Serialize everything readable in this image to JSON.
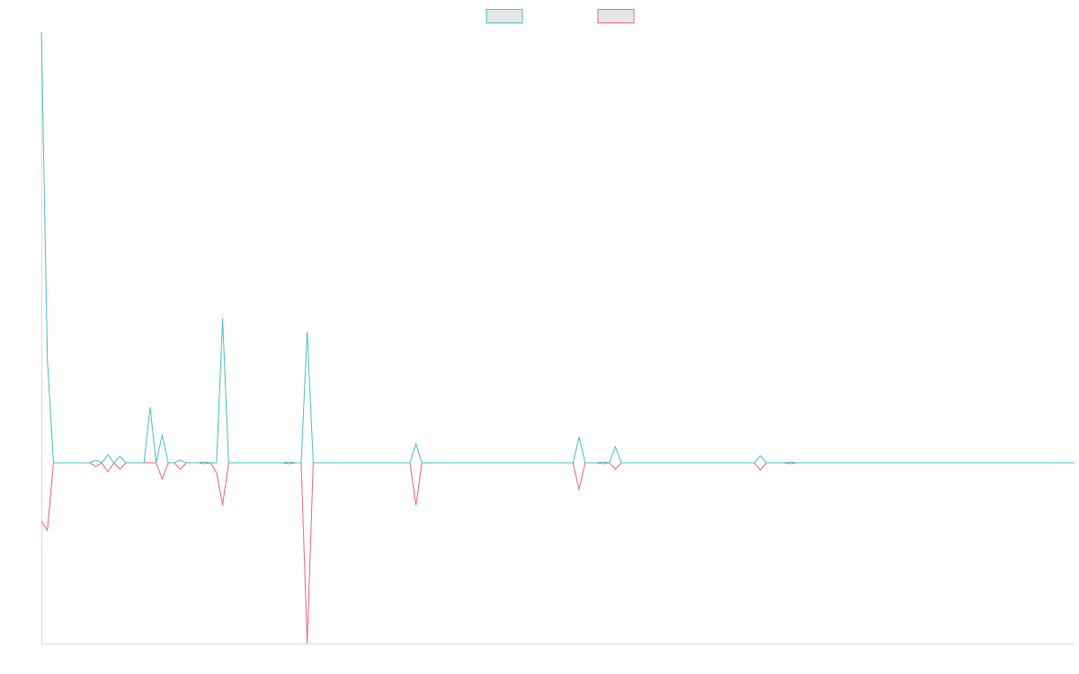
{
  "chart_data": {
    "type": "line",
    "legend": "top",
    "ylim": [
      -201,
      479
    ],
    "categories": [
      null,
      null,
      null,
      null,
      null,
      null,
      null,
      null,
      null,
      null,
      null,
      null,
      null,
      null,
      null,
      null,
      null,
      null,
      null,
      null,
      null,
      null,
      null,
      null,
      null,
      null,
      null,
      null,
      null,
      null,
      null,
      null,
      null,
      null,
      null,
      null,
      null,
      null,
      null,
      null,
      null,
      null,
      null,
      null,
      null,
      null,
      null,
      null,
      null,
      null,
      null,
      null,
      null,
      null,
      null,
      null,
      null,
      null,
      null,
      null,
      null,
      null,
      null,
      null,
      null,
      null,
      null,
      null,
      null,
      null,
      null,
      null,
      null,
      null,
      null,
      null,
      null,
      null,
      null,
      null,
      null,
      null,
      null,
      null,
      null,
      null,
      null,
      null,
      null,
      null,
      null,
      null,
      null,
      null,
      null,
      null,
      null,
      null,
      null,
      null,
      null,
      null,
      null,
      null,
      null,
      null,
      null,
      null,
      null,
      null,
      null,
      null,
      null,
      null,
      null,
      null,
      null,
      null,
      null,
      null,
      null,
      null,
      null,
      null,
      null,
      null,
      null,
      null,
      null,
      null,
      null,
      null,
      null,
      null,
      null,
      null,
      null,
      null,
      null,
      null,
      null,
      null,
      null,
      null,
      null,
      null,
      null,
      null,
      null,
      null,
      null,
      null,
      null,
      null,
      null,
      null,
      null,
      null,
      null,
      null,
      null,
      null,
      null,
      null,
      null,
      null,
      null,
      null,
      null,
      null,
      null,
      null
    ],
    "series": [
      {
        "color": "#4bc0c0",
        "values": [
          479,
          115,
          0,
          0,
          0,
          0,
          0,
          0,
          0,
          3,
          0,
          9,
          0,
          7,
          0,
          0,
          0,
          0,
          62,
          0,
          31,
          0,
          0,
          3,
          0,
          0,
          0,
          1,
          0,
          0,
          161,
          0,
          0,
          0,
          0,
          0,
          0,
          0,
          0,
          0,
          0,
          1,
          0,
          0,
          146,
          0,
          0,
          0,
          0,
          0,
          0,
          0,
          0,
          0,
          0,
          0,
          0,
          0,
          0,
          0,
          0,
          0,
          21,
          0,
          0,
          0,
          0,
          0,
          0,
          0,
          0,
          0,
          0,
          0,
          0,
          0,
          0,
          0,
          0,
          0,
          0,
          0,
          0,
          0,
          0,
          0,
          0,
          0,
          0,
          29,
          0,
          0,
          0,
          1,
          0,
          18,
          0,
          0,
          0,
          0,
          0,
          0,
          0,
          0,
          0,
          0,
          0,
          0,
          0,
          0,
          0,
          0,
          0,
          0,
          0,
          0,
          0,
          0,
          0,
          8,
          0,
          0,
          0,
          0,
          1,
          0,
          0,
          0,
          0,
          0,
          0,
          0,
          0,
          0,
          0,
          0,
          0,
          0,
          0,
          0,
          0,
          0,
          0,
          0,
          0,
          0,
          0,
          0,
          0,
          0,
          0,
          0,
          0,
          0,
          0,
          0,
          0,
          0,
          0,
          0,
          0,
          0,
          0,
          0,
          0,
          0,
          0,
          0,
          0,
          0,
          0,
          0
        ]
      },
      {
        "color": "#f0628a",
        "values": [
          -65,
          -75,
          0,
          0,
          0,
          0,
          0,
          0,
          0,
          -4,
          0,
          -10,
          0,
          -7,
          0,
          0,
          0,
          0,
          0,
          0,
          -18,
          0,
          0,
          -7,
          0,
          0,
          0,
          -1,
          0,
          -11,
          -47,
          0,
          0,
          0,
          0,
          0,
          0,
          0,
          0,
          0,
          0,
          -1,
          0,
          0,
          -201,
          0,
          0,
          0,
          0,
          0,
          0,
          0,
          0,
          0,
          0,
          0,
          0,
          0,
          0,
          0,
          0,
          0,
          -47,
          0,
          0,
          0,
          0,
          0,
          0,
          0,
          0,
          0,
          0,
          0,
          0,
          0,
          0,
          0,
          0,
          0,
          0,
          0,
          0,
          0,
          0,
          0,
          0,
          0,
          0,
          -30,
          0,
          0,
          0,
          -1,
          0,
          -7,
          0,
          0,
          0,
          0,
          0,
          0,
          0,
          0,
          0,
          0,
          0,
          0,
          0,
          0,
          0,
          0,
          0,
          0,
          0,
          0,
          0,
          0,
          0,
          -8,
          0,
          0,
          0,
          0,
          -1,
          0,
          0,
          0,
          0,
          0,
          0,
          0,
          0,
          0,
          0,
          0,
          0,
          0,
          0,
          0,
          0,
          0,
          0,
          0,
          0,
          0,
          0,
          0,
          0,
          0,
          0,
          0,
          0,
          0,
          0,
          0,
          0,
          0,
          0,
          0,
          0,
          0,
          0,
          0,
          0,
          0,
          0,
          0,
          0,
          0,
          0,
          0
        ]
      }
    ]
  }
}
